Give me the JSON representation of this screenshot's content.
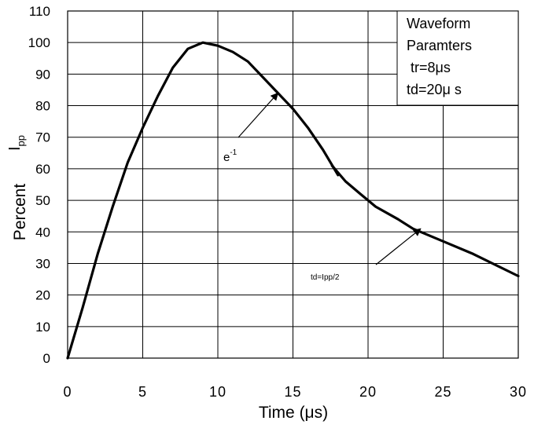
{
  "chart_data": {
    "type": "line",
    "xlabel": "Time (μs)",
    "ylabel": "Percent",
    "ylabel_symbol": {
      "main": "I",
      "sub": "pp"
    },
    "xlim": [
      0,
      30
    ],
    "ylim": [
      0,
      110
    ],
    "x_ticks": [
      "0",
      "5",
      "10",
      "15",
      "20",
      "25",
      "30"
    ],
    "y_ticks": [
      "0",
      "10",
      "20",
      "30",
      "40",
      "50",
      "60",
      "70",
      "80",
      "90",
      "100",
      "110"
    ],
    "grid": true,
    "series": [
      {
        "points": [
          [
            0,
            0
          ],
          [
            1,
            16
          ],
          [
            2,
            33
          ],
          [
            3,
            48
          ],
          [
            4,
            62
          ],
          [
            5,
            73
          ],
          [
            6,
            83
          ],
          [
            7,
            92
          ],
          [
            8,
            98
          ],
          [
            9,
            100
          ],
          [
            10,
            99
          ],
          [
            11,
            97
          ],
          [
            12,
            94
          ],
          [
            13,
            89
          ],
          [
            14,
            84
          ],
          [
            15,
            79
          ],
          [
            16,
            73
          ],
          [
            17,
            66
          ],
          [
            18,
            58
          ]
        ]
      },
      {
        "points": [
          [
            17.6,
            61
          ],
          [
            18.5,
            56
          ],
          [
            19.5,
            52
          ],
          [
            20.5,
            48
          ],
          [
            22,
            44
          ],
          [
            23,
            41
          ],
          [
            25,
            37
          ],
          [
            27,
            33
          ],
          [
            30,
            26
          ]
        ]
      }
    ],
    "annotations": [
      {
        "label": "e",
        "sup": "-1",
        "arrow_to": [
          14,
          84
        ]
      },
      {
        "label": "td=Ipp/2",
        "arrow_to": [
          23.5,
          41
        ]
      }
    ],
    "info_box": {
      "lines": [
        "Waveform",
        "Paramters",
        "tr=8μs",
        "td=20μ s"
      ]
    }
  }
}
